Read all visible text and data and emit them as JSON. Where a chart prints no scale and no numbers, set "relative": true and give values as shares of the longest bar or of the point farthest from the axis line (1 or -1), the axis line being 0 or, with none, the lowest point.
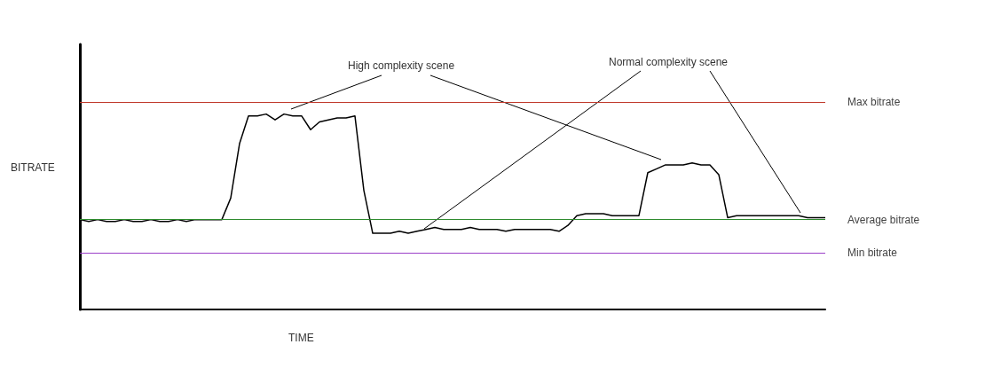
{
  "chart_data": {
    "type": "line",
    "relative": true,
    "xlabel": "TIME",
    "ylabel": "BITRATE",
    "grid": false,
    "marker": "none",
    "categories": [
      null,
      null,
      null,
      null,
      null,
      null,
      null,
      null,
      null,
      null,
      null,
      null,
      null,
      null,
      null,
      null,
      null,
      null,
      null,
      null,
      null,
      null,
      null,
      null,
      null,
      null,
      null,
      null,
      null,
      null,
      null,
      null,
      null,
      null,
      null,
      null,
      null,
      null,
      null,
      null,
      null,
      null,
      null,
      null,
      null,
      null,
      null,
      null,
      null,
      null,
      null,
      null,
      null,
      null,
      null,
      null,
      null,
      null,
      null,
      null,
      null,
      null,
      null,
      null,
      null,
      null,
      null,
      null,
      null,
      null,
      null,
      null,
      null,
      null,
      null,
      null,
      null,
      null,
      null,
      null,
      null,
      null,
      null,
      null,
      null
    ],
    "series": [
      {
        "color": "#000000",
        "values": [
          0.46,
          0.45,
          0.46,
          0.45,
          0.45,
          0.46,
          0.45,
          0.45,
          0.46,
          0.45,
          0.45,
          0.46,
          0.45,
          0.46,
          0.46,
          0.46,
          0.46,
          0.57,
          0.85,
          0.99,
          0.99,
          1.0,
          0.97,
          1.0,
          0.99,
          0.99,
          0.92,
          0.96,
          0.97,
          0.98,
          0.98,
          0.99,
          0.61,
          0.39,
          0.39,
          0.39,
          0.4,
          0.39,
          0.4,
          0.41,
          0.42,
          0.41,
          0.41,
          0.41,
          0.42,
          0.41,
          0.41,
          0.41,
          0.4,
          0.41,
          0.41,
          0.41,
          0.41,
          0.41,
          0.4,
          0.43,
          0.48,
          0.49,
          0.49,
          0.49,
          0.48,
          0.48,
          0.48,
          0.48,
          0.7,
          0.72,
          0.74,
          0.74,
          0.74,
          0.75,
          0.74,
          0.74,
          0.69,
          0.47,
          0.48,
          0.48,
          0.48,
          0.48,
          0.48,
          0.48,
          0.48,
          0.48,
          0.47,
          0.47,
          0.47
        ]
      }
    ],
    "ref_lines": [
      {
        "axis": "y",
        "value": 1.06,
        "label": "Max bitrate",
        "color": "#c0392b"
      },
      {
        "axis": "y",
        "value": 0.46,
        "label": "Average bitrate",
        "color": "#2e8b2e"
      },
      {
        "axis": "y",
        "value": 0.29,
        "label": "Min bitrate",
        "color": "#9b3fc8"
      }
    ],
    "annotations": [
      "High complexity scene",
      "Normal complexity scene"
    ]
  }
}
